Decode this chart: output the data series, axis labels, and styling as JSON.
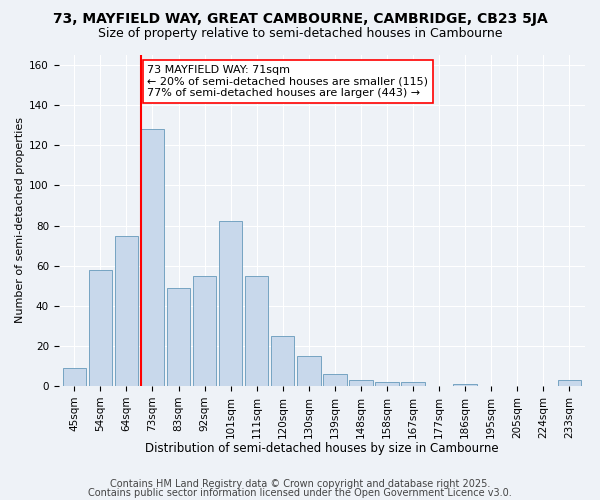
{
  "title1": "73, MAYFIELD WAY, GREAT CAMBOURNE, CAMBRIDGE, CB23 5JA",
  "title2": "Size of property relative to semi-detached houses in Cambourne",
  "xlabel": "Distribution of semi-detached houses by size in Cambourne",
  "ylabel": "Number of semi-detached properties",
  "bin_labels": [
    "45sqm",
    "54sqm",
    "64sqm",
    "73sqm",
    "83sqm",
    "92sqm",
    "101sqm",
    "111sqm",
    "120sqm",
    "130sqm",
    "139sqm",
    "148sqm",
    "158sqm",
    "167sqm",
    "177sqm",
    "186sqm",
    "195sqm",
    "205sqm",
    "224sqm",
    "233sqm"
  ],
  "bar_heights": [
    9,
    58,
    75,
    128,
    49,
    55,
    82,
    55,
    25,
    15,
    6,
    3,
    2,
    2,
    0,
    1,
    0,
    0,
    0,
    3
  ],
  "bar_color": "#c8d8eb",
  "bar_edge_color": "#6699bb",
  "vline_index": 3,
  "vline_color": "red",
  "annotation_text": "73 MAYFIELD WAY: 71sqm\n← 20% of semi-detached houses are smaller (115)\n77% of semi-detached houses are larger (443) →",
  "annotation_box_facecolor": "white",
  "annotation_box_edgecolor": "red",
  "ylim": [
    0,
    165
  ],
  "yticks": [
    0,
    20,
    40,
    60,
    80,
    100,
    120,
    140,
    160
  ],
  "footer1": "Contains HM Land Registry data © Crown copyright and database right 2025.",
  "footer2": "Contains public sector information licensed under the Open Government Licence v3.0.",
  "bg_color": "#eef2f7",
  "title1_fontsize": 10,
  "title2_fontsize": 9,
  "xlabel_fontsize": 8.5,
  "ylabel_fontsize": 8,
  "tick_fontsize": 7.5,
  "annotation_fontsize": 8,
  "footer_fontsize": 7
}
